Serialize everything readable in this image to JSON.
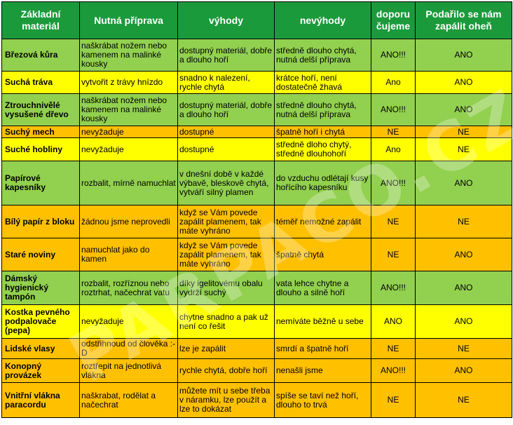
{
  "headers": [
    "Základní materiál",
    "Nutná příprava",
    "výhody",
    "nevýhody",
    "doporučujeme",
    "Podařilo se nám zapálit oheň"
  ],
  "headers_display": [
    "Základní\nmateriál",
    "Nutná příprava",
    "výhody",
    "nevýhody",
    "doporu\nčujeme",
    "Podařilo se nám\nzapálit oheň"
  ],
  "colors": {
    "header": "#1b9a3c",
    "green": "#92d050",
    "yellow": "#ffff00",
    "orange": "#ffc000"
  },
  "watermark": "PARPACO.CZ",
  "rows": [
    {
      "color": "green",
      "material": "Březová kůra",
      "priprava": "naškrábat nožem nebo kamenem na malinké kousky",
      "vyhody": "dostupný materiál, dobře a dlouho hoří",
      "nevyhody": "středně dlouho chytá, nutná delší příprava",
      "doporucujeme": "ANO!!!",
      "zapalit": "ANO"
    },
    {
      "color": "yellow",
      "material": "Suchá  tráva",
      "priprava": "vytvořit z trávy hnízdo",
      "vyhody": "snadno k nalezení, rychle chytá",
      "nevyhody": "krátce hoří, není dostatečně žhavá",
      "doporucujeme": "Ano",
      "zapalit": "ANO"
    },
    {
      "color": "green",
      "material": "Ztrouchnivělé vysušené dřevo",
      "priprava": "naškrábat nožem nebo kamenem na malinké kousky",
      "vyhody": "dostupný materiál, dobře a dlouho hoří",
      "nevyhody": "středně dlouho chytá, nutná delší příprava",
      "doporucujeme": "ANO!!!",
      "zapalit": "ANO"
    },
    {
      "color": "orange",
      "material": "Suchý mech",
      "priprava": "nevyžaduje",
      "vyhody": "dostupné",
      "nevyhody": "špatně hoří i chytá",
      "doporucujeme": "NE",
      "zapalit": "NE"
    },
    {
      "color": "yellow",
      "material": "Suché hobliny",
      "priprava": "nevyžaduje",
      "vyhody": "dostupné",
      "nevyhody": "středně dloho chytý, středně dlouhohoří",
      "doporucujeme": "Ano",
      "zapalit": "NE"
    },
    {
      "color": "green",
      "material": "Papírové kapesníky",
      "priprava": "rozbalit, mírně namuchlat",
      "vyhody": "v dnešní době v každé výbavě, bleskově chytá, vytváří silný plamen",
      "nevyhody": "do vzduchu odlétají kusy hořícího kapesníku",
      "doporucujeme": "ANO!!!",
      "zapalit": "ANO"
    },
    {
      "color": "orange",
      "material": "Bílý papír z bloku",
      "priprava": "žádnou jsme neprovedli",
      "vyhody": "když se Vám povede zapálit plamenem, tak máte vyhráno",
      "nevyhody": "téměř nemožné zapálit",
      "doporucujeme": "NE",
      "zapalit": "NE"
    },
    {
      "color": "orange",
      "material": "Staré noviny",
      "priprava": "namuchlat jako do kamen",
      "vyhody": "když se Vám povede zapálit plamenem, tak máte vyhráno",
      "nevyhody": "špatně chytá",
      "doporucujeme": "NE",
      "zapalit": "ANO"
    },
    {
      "color": "green",
      "material": "Dámský hygienický tampón",
      "priprava": "rozbalit, rozříznou nebo roztrhat, načechrat vatu",
      "vyhody": "díky igelitovému obalu vydrží suchý",
      "nevyhody": "vata lehce chytne a dlouho a silně hoří",
      "doporucujeme": "ANO!!!",
      "zapalit": "ANO"
    },
    {
      "color": "yellow",
      "material": "Kostka pevného podpalovače (pepa)",
      "priprava": "nevyžaduje",
      "vyhody": "chytne snadno a pak už není co řešit",
      "nevyhody": "nemíváte běžně u sebe",
      "doporucujeme": "ANO",
      "zapalit": "ANO"
    },
    {
      "color": "orange",
      "material": "Lidské vlasy",
      "priprava": "odstřihnoud od člověka :-D",
      "vyhody": "lze je zapálit",
      "nevyhody": "smrdí a špatně hoří",
      "doporucujeme": "NE",
      "zapalit": "NE"
    },
    {
      "color": "orange",
      "material": "Konopný provázek",
      "priprava": "roztřepit na jednotlivá vlákna",
      "vyhody": "rychle chytá, dobře hoří",
      "nevyhody": "nenašli jsme",
      "doporucujeme": "ANO!!!",
      "zapalit": "ANO"
    },
    {
      "color": "orange",
      "material": "Vnitřní vlákna paracordu",
      "priprava": "naškrabat, rodělat a načechrat",
      "vyhody": "můžete mít u sebe třeba v náramku, lze použít a lze to dokázat",
      "nevyhody": "spíše se taví než hoří, dlouho to trvá",
      "doporucujeme": "NE",
      "zapalit": "NE"
    }
  ]
}
